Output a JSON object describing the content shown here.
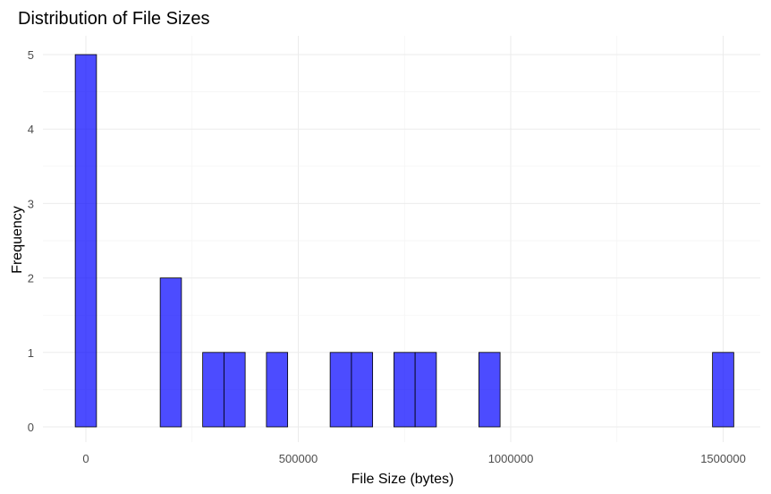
{
  "chart_data": {
    "type": "histogram",
    "title": "Distribution of File Sizes",
    "xlabel": "File Size (bytes)",
    "ylabel": "Frequency",
    "x_ticks": [
      0,
      500000,
      1000000,
      1500000
    ],
    "x_tick_labels": [
      "0",
      "500000",
      "1000000",
      "1500000"
    ],
    "y_ticks": [
      0,
      1,
      2,
      3,
      4,
      5
    ],
    "y_tick_labels": [
      "0",
      "1",
      "2",
      "3",
      "4",
      "5"
    ],
    "xlim": [
      -100000,
      1600000
    ],
    "ylim": [
      0,
      5
    ],
    "bin_width": 50000,
    "bins": [
      {
        "center": 0,
        "count": 5
      },
      {
        "center": 50000,
        "count": 0
      },
      {
        "center": 100000,
        "count": 0
      },
      {
        "center": 150000,
        "count": 0
      },
      {
        "center": 200000,
        "count": 2
      },
      {
        "center": 250000,
        "count": 0
      },
      {
        "center": 300000,
        "count": 1
      },
      {
        "center": 350000,
        "count": 1
      },
      {
        "center": 400000,
        "count": 0
      },
      {
        "center": 450000,
        "count": 1
      },
      {
        "center": 500000,
        "count": 0
      },
      {
        "center": 550000,
        "count": 0
      },
      {
        "center": 600000,
        "count": 1
      },
      {
        "center": 650000,
        "count": 1
      },
      {
        "center": 700000,
        "count": 0
      },
      {
        "center": 750000,
        "count": 1
      },
      {
        "center": 800000,
        "count": 1
      },
      {
        "center": 850000,
        "count": 0
      },
      {
        "center": 900000,
        "count": 0
      },
      {
        "center": 950000,
        "count": 1
      },
      {
        "center": 1000000,
        "count": 0
      },
      {
        "center": 1050000,
        "count": 0
      },
      {
        "center": 1100000,
        "count": 0
      },
      {
        "center": 1150000,
        "count": 0
      },
      {
        "center": 1200000,
        "count": 0
      },
      {
        "center": 1250000,
        "count": 0
      },
      {
        "center": 1300000,
        "count": 0
      },
      {
        "center": 1350000,
        "count": 0
      },
      {
        "center": 1400000,
        "count": 0
      },
      {
        "center": 1450000,
        "count": 0
      },
      {
        "center": 1500000,
        "count": 1
      }
    ],
    "grid": true,
    "bar_fill": "#0000ff",
    "bar_opacity": 0.7,
    "bar_outline": "#000000"
  }
}
